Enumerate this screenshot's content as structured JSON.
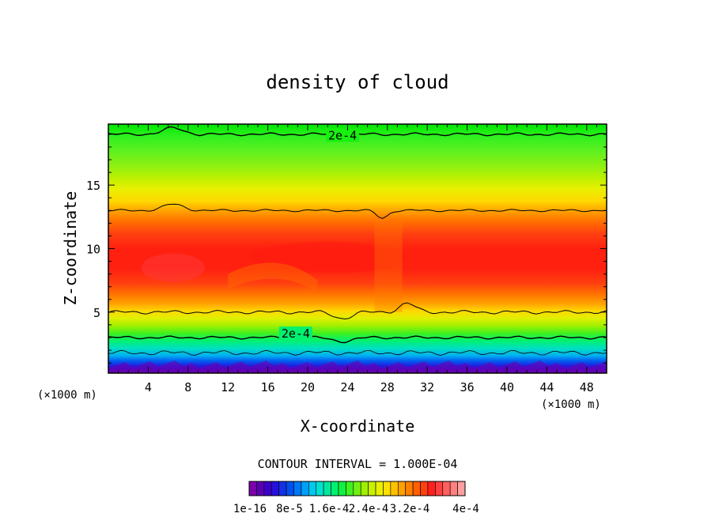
{
  "chart_data": {
    "type": "heatmap",
    "title": "density of cloud",
    "xlabel": "X-coordinate",
    "ylabel": "Z-coordinate",
    "x_unit": "(×1000 m)",
    "y_unit": "(×1000 m)",
    "xlim": [
      0,
      50
    ],
    "ylim": [
      0.2,
      19.8
    ],
    "x_ticks": [
      4,
      8,
      12,
      16,
      20,
      24,
      28,
      32,
      36,
      40,
      44,
      48
    ],
    "y_ticks": [
      5,
      10,
      15
    ],
    "contour_interval_text": "CONTOUR INTERVAL = 1.000E-04",
    "contour_labels": [
      {
        "text": "2e-4",
        "x": 23.5,
        "y": 18.9
      },
      {
        "text": "2e-4",
        "x": 18.8,
        "y": 3.3
      }
    ],
    "colorbar": {
      "colors": [
        "#7a00a8",
        "#5a00b4",
        "#3c00c8",
        "#2810dc",
        "#1430e6",
        "#0050f0",
        "#0078f5",
        "#00a0f8",
        "#00c8f0",
        "#00e0d0",
        "#00e8a0",
        "#00f070",
        "#10f040",
        "#40f020",
        "#70f010",
        "#a0f000",
        "#c8f000",
        "#e8f000",
        "#ffe000",
        "#ffc000",
        "#ffa000",
        "#ff8000",
        "#ff6000",
        "#ff4010",
        "#ff2020",
        "#ff4040",
        "#ff6060",
        "#ff8080",
        "#ffa0a0"
      ],
      "tick_labels": [
        "1e-16",
        "8e-5",
        "1.6e-4",
        "2.4e-4",
        "3.2e-4",
        "4e-4"
      ]
    }
  }
}
